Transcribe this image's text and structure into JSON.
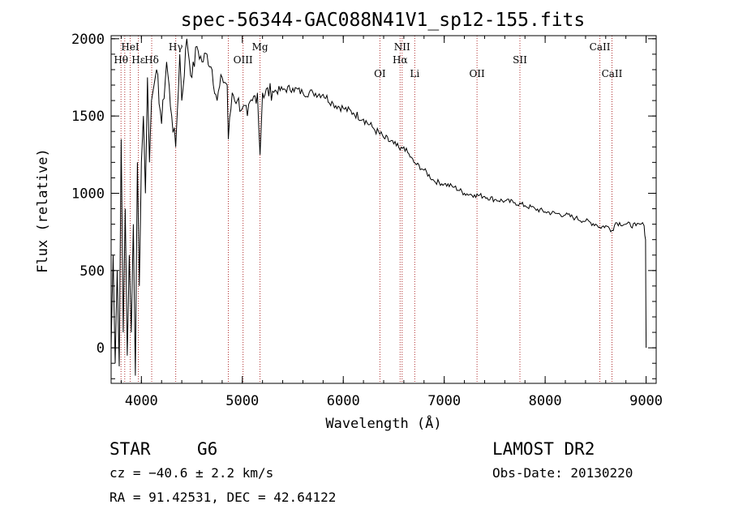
{
  "chart_data": {
    "type": "line",
    "title": "spec-56344-GAC088N41V1_sp12-155.fits",
    "xlabel": "Wavelength (Å)",
    "ylabel": "Flux (relative)",
    "xlim": [
      3700,
      9100
    ],
    "ylim": [
      -230,
      2020
    ],
    "x_ticks": [
      {
        "value": 4000,
        "label": "4000"
      },
      {
        "value": 5000,
        "label": "5000"
      },
      {
        "value": 6000,
        "label": "6000"
      },
      {
        "value": 7000,
        "label": "7000"
      },
      {
        "value": 8000,
        "label": "8000"
      },
      {
        "value": 9000,
        "label": "9000"
      }
    ],
    "y_ticks": [
      {
        "value": 0,
        "label": "0"
      },
      {
        "value": 500,
        "label": "500"
      },
      {
        "value": 1000,
        "label": "1000"
      },
      {
        "value": 1500,
        "label": "1500"
      },
      {
        "value": 2000,
        "label": "2000"
      }
    ],
    "grid": false,
    "series": [
      {
        "color": "#000000",
        "x": [
          3700,
          3720,
          3740,
          3760,
          3780,
          3800,
          3820,
          3840,
          3860,
          3880,
          3900,
          3920,
          3940,
          3960,
          3980,
          4000,
          4020,
          4040,
          4060,
          4080,
          4100,
          4150,
          4200,
          4250,
          4300,
          4340,
          4380,
          4400,
          4450,
          4500,
          4550,
          4600,
          4650,
          4700,
          4750,
          4800,
          4850,
          4861,
          4900,
          4950,
          5000,
          5050,
          5100,
          5150,
          5175,
          5200,
          5300,
          5400,
          5500,
          5600,
          5700,
          5800,
          5900,
          6000,
          6100,
          6200,
          6300,
          6400,
          6500,
          6563,
          6600,
          6700,
          6800,
          6900,
          7000,
          7100,
          7200,
          7300,
          7400,
          7500,
          7600,
          7700,
          7800,
          7900,
          8000,
          8100,
          8200,
          8300,
          8400,
          8500,
          8542,
          8600,
          8662,
          8700,
          8800,
          8900,
          8950,
          8980,
          8995,
          9000
        ],
        "y": [
          0,
          600,
          -100,
          500,
          -120,
          1350,
          100,
          900,
          -50,
          600,
          100,
          800,
          -180,
          1200,
          400,
          1200,
          1500,
          1000,
          1750,
          1200,
          1600,
          1800,
          1450,
          1850,
          1500,
          1300,
          1900,
          1600,
          2000,
          1750,
          1950,
          1850,
          1900,
          1800,
          1600,
          1750,
          1700,
          1350,
          1650,
          1600,
          1550,
          1500,
          1600,
          1650,
          1250,
          1650,
          1660,
          1670,
          1680,
          1650,
          1650,
          1640,
          1580,
          1550,
          1520,
          1480,
          1420,
          1360,
          1320,
          1280,
          1300,
          1200,
          1150,
          1080,
          1060,
          1040,
          1000,
          990,
          980,
          960,
          950,
          940,
          920,
          900,
          880,
          870,
          860,
          840,
          820,
          800,
          780,
          790,
          760,
          810,
          800,
          790,
          800,
          790,
          700,
          0
        ]
      }
    ],
    "annotations": [
      {
        "label": "Hθ",
        "x": 3798,
        "tier": 2
      },
      {
        "label": "HeI",
        "x": 3889,
        "tier": 1
      },
      {
        "label": "Hε",
        "x": 3970,
        "tier": 2
      },
      {
        "label": "Hδ",
        "x": 4102,
        "tier": 2
      },
      {
        "label": "Hγ",
        "x": 4340,
        "tier": 1
      },
      {
        "label": "OIII",
        "x": 5007,
        "tier": 2
      },
      {
        "label": "Mg",
        "x": 5175,
        "tier": 1
      },
      {
        "label": "OI",
        "x": 6363,
        "tier": 3
      },
      {
        "label": "NII",
        "x": 6583,
        "tier": 1
      },
      {
        "label": "Hα",
        "x": 6563,
        "tier": 2
      },
      {
        "label": "Li",
        "x": 6708,
        "tier": 3
      },
      {
        "label": "OII",
        "x": 7325,
        "tier": 3
      },
      {
        "label": "SII",
        "x": 7750,
        "tier": 2
      },
      {
        "label": "CaII",
        "x": 8542,
        "tier": 1
      },
      {
        "label": "CaII",
        "x": 8662,
        "tier": 3
      }
    ],
    "line_markers": [
      3798,
      3835,
      3889,
      3970,
      4102,
      4340,
      4861,
      5007,
      5175,
      6363,
      6563,
      6583,
      6708,
      7325,
      7750,
      8542,
      8662
    ]
  },
  "info": {
    "object_class": "STAR",
    "subclass": "G6",
    "cz": "cz = −40.6 ± 2.2 km/s",
    "coords": "RA =  91.42531, DEC =  42.64122",
    "survey": "LAMOST DR2",
    "obs_date": "Obs-Date: 20130220"
  }
}
